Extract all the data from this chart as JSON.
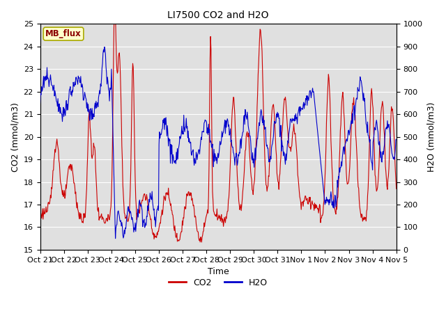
{
  "title": "LI7500 CO2 and H2O",
  "xlabel": "Time",
  "ylabel_left": "CO2 (mmol/m3)",
  "ylabel_right": "H2O (mmol/m3)",
  "ylim_left": [
    15.0,
    25.0
  ],
  "ylim_right": [
    0,
    1000
  ],
  "yticks_left": [
    15.0,
    16.0,
    17.0,
    18.0,
    19.0,
    20.0,
    21.0,
    22.0,
    23.0,
    24.0,
    25.0
  ],
  "yticks_right": [
    0,
    100,
    200,
    300,
    400,
    500,
    600,
    700,
    800,
    900,
    1000
  ],
  "xtick_labels": [
    "Oct 21",
    "Oct 22",
    "Oct 23",
    "Oct 24",
    "Oct 25",
    "Oct 26",
    "Oct 27",
    "Oct 28",
    "Oct 29",
    "Oct 30",
    "Oct 31",
    "Nov 1",
    "Nov 2",
    "Nov 3",
    "Nov 4",
    "Nov 5"
  ],
  "co2_color": "#CC0000",
  "h2o_color": "#0000CC",
  "background_color": "#E0E0E0",
  "grid_color": "#FFFFFF",
  "annotation_text": "MB_flux",
  "annotation_bg": "#FFFFCC",
  "annotation_border": "#AAAA00",
  "linewidth": 0.8,
  "n_days": 15,
  "n_points": 720
}
